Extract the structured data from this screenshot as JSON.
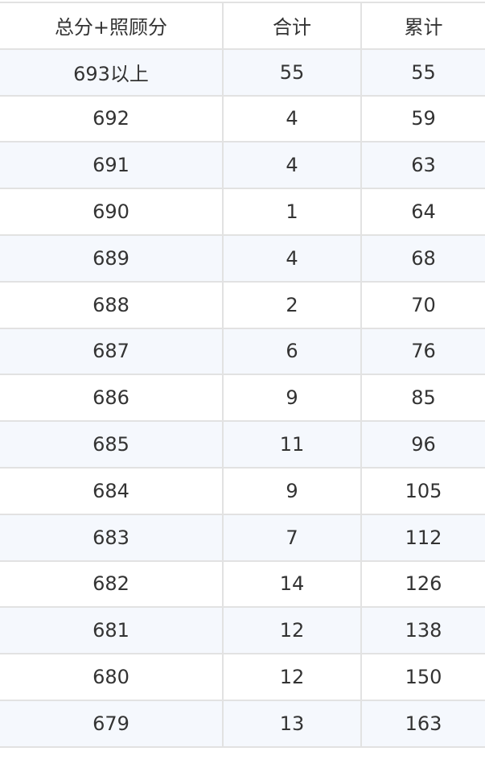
{
  "table": {
    "headers": [
      "总分+照顾分",
      "合计",
      "累计"
    ],
    "rows": [
      [
        "693以上",
        "55",
        "55"
      ],
      [
        "692",
        "4",
        "59"
      ],
      [
        "691",
        "4",
        "63"
      ],
      [
        "690",
        "1",
        "64"
      ],
      [
        "689",
        "4",
        "68"
      ],
      [
        "688",
        "2",
        "70"
      ],
      [
        "687",
        "6",
        "76"
      ],
      [
        "686",
        "9",
        "85"
      ],
      [
        "685",
        "11",
        "96"
      ],
      [
        "684",
        "9",
        "105"
      ],
      [
        "683",
        "7",
        "112"
      ],
      [
        "682",
        "14",
        "126"
      ],
      [
        "681",
        "12",
        "138"
      ],
      [
        "680",
        "12",
        "150"
      ],
      [
        "679",
        "13",
        "163"
      ]
    ]
  },
  "colors": {
    "border": "#e2e2e2",
    "alt_row": "#f5f8fd",
    "text": "#333333"
  }
}
